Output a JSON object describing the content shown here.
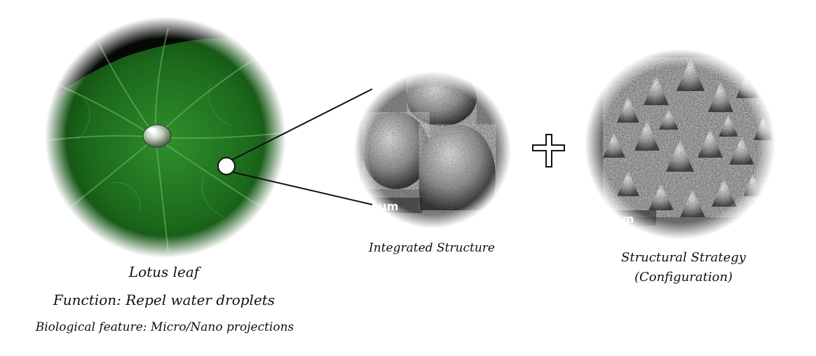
{
  "lotus": {
    "caption_line1": "Lotus leaf",
    "caption_line2": "Function: Repel water droplets",
    "caption_line3": "Biological feature: Micro/Nano projections"
  },
  "integrated": {
    "caption": "Integrated Structure",
    "scale_label": "μm"
  },
  "structural": {
    "caption_line1": "Structural Strategy",
    "caption_line2": "(Configuration)",
    "scale_label": "μm"
  },
  "colors": {
    "leaf_dark": "#0b2e0b",
    "leaf_mid": "#1f6f1f",
    "leaf_light": "#3fa23a",
    "sem_light": "#d9d9d9",
    "sem_dark": "#3a3a3a"
  }
}
